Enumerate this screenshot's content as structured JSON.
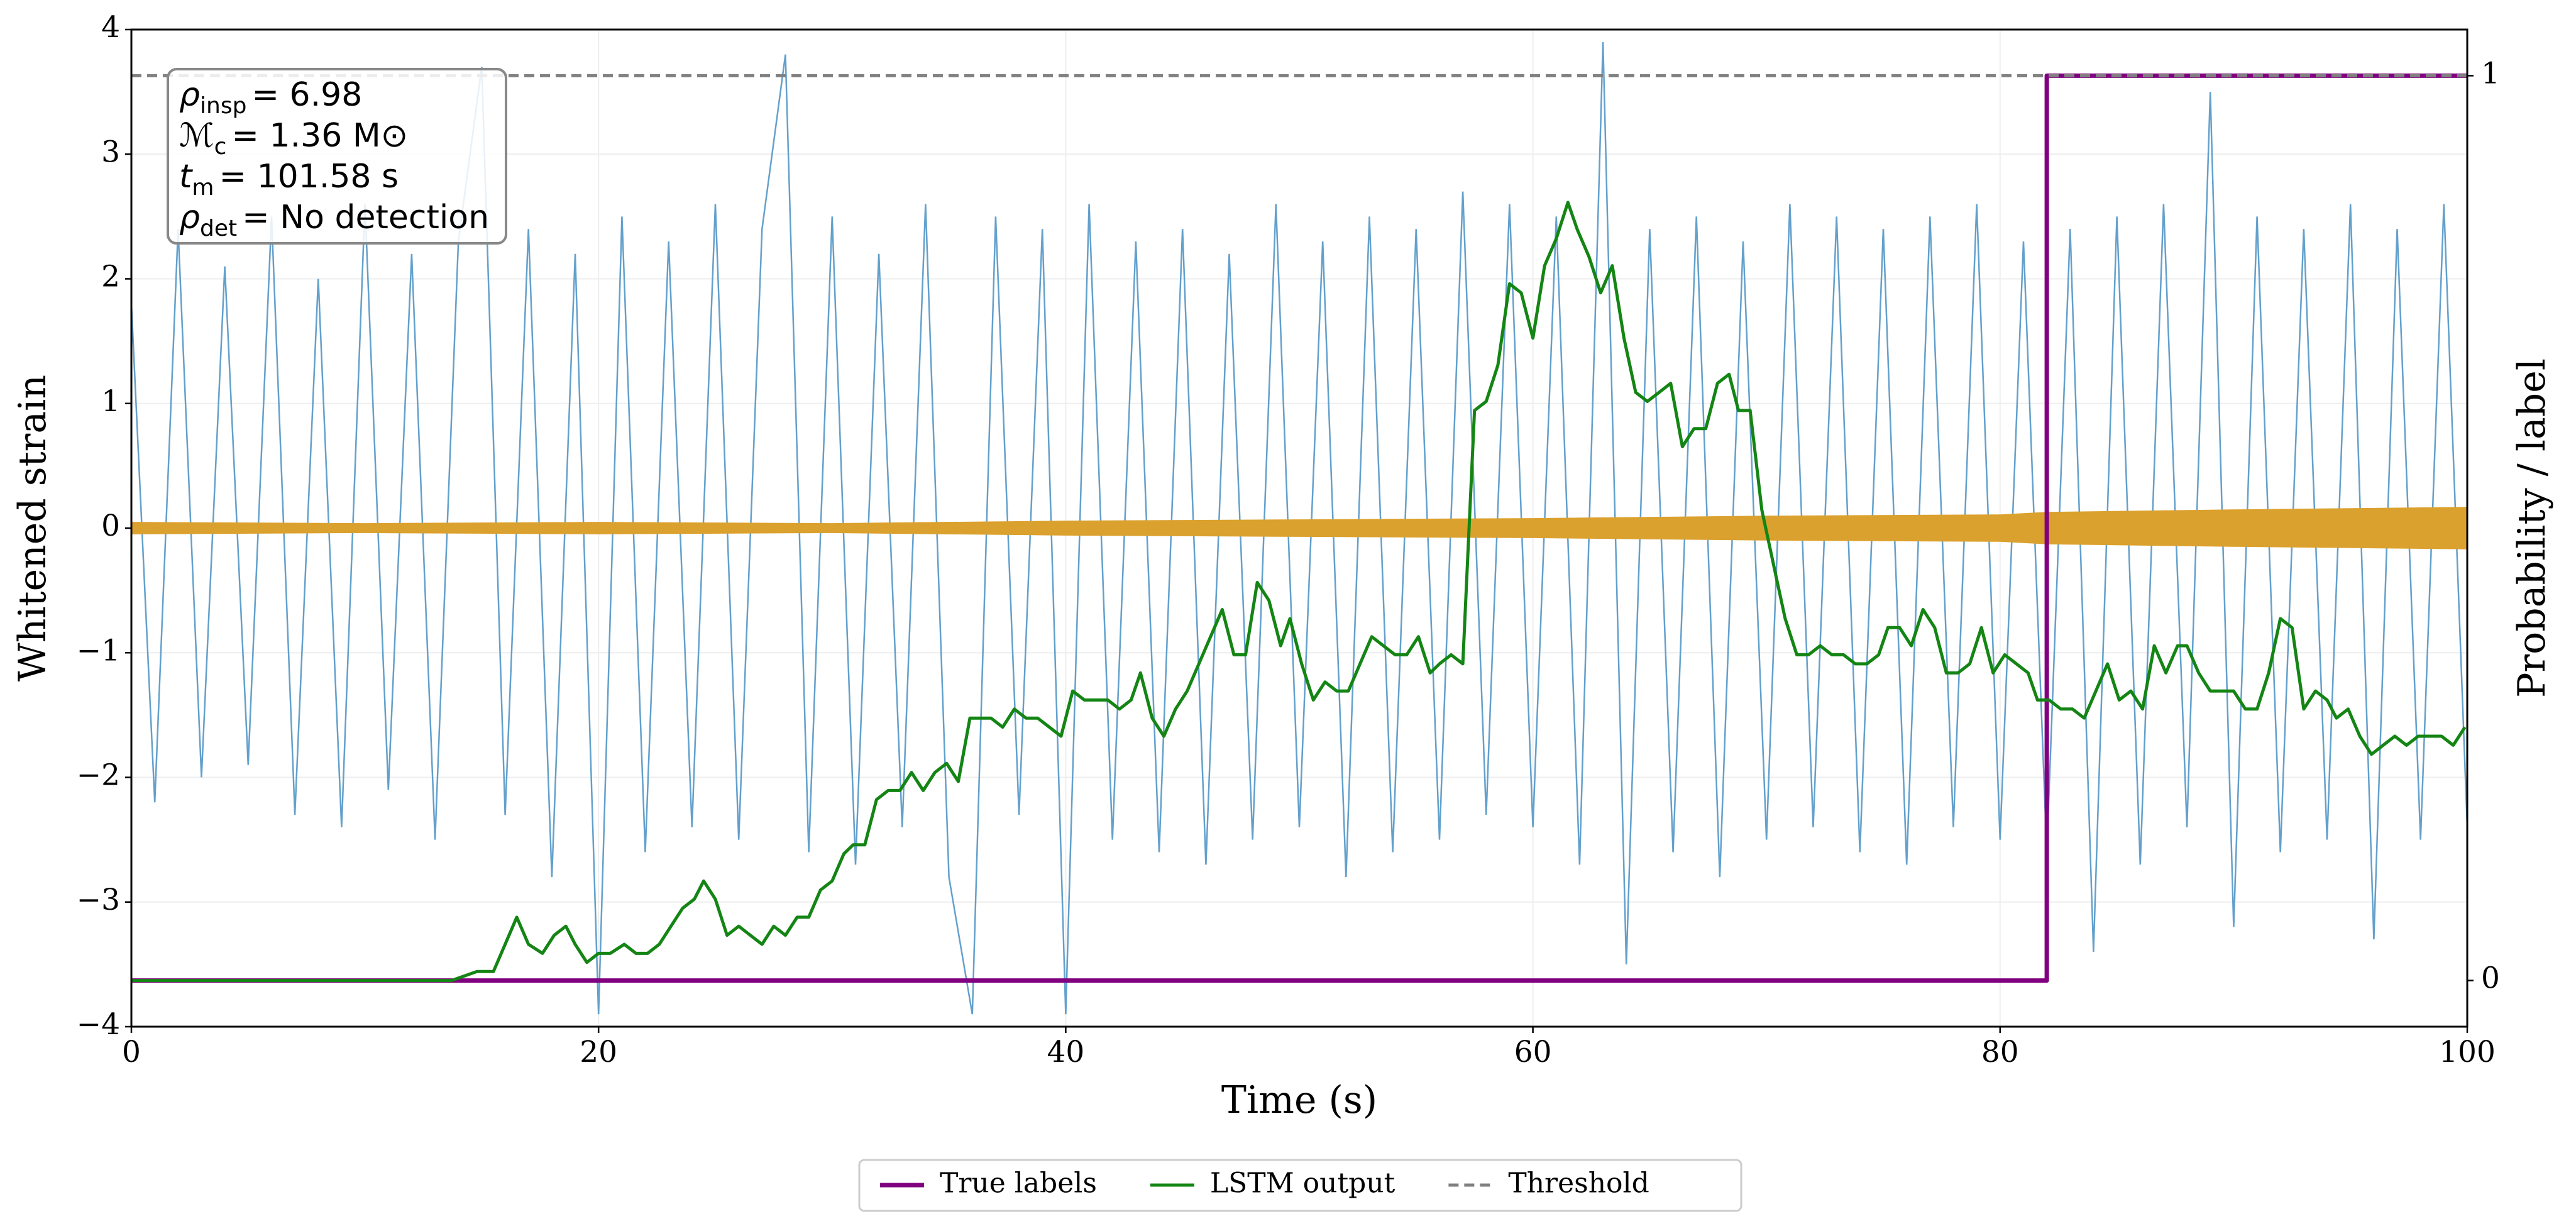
{
  "chart_data": {
    "type": "line",
    "xlabel": "Time (s)",
    "ylabel": "Whitened strain",
    "y2label": "Probability / label",
    "xlim": [
      0,
      100
    ],
    "xticks": [
      0,
      20,
      40,
      60,
      80,
      100
    ],
    "ylim": [
      -4,
      4
    ],
    "yticks": [
      {
        "value": -4,
        "label": "−4"
      },
      {
        "value": -3,
        "label": "−3"
      },
      {
        "value": -2,
        "label": "−2"
      },
      {
        "value": -1,
        "label": "−1"
      },
      0,
      1,
      2,
      3,
      4
    ],
    "y2lim": [
      -0.051,
      1.051
    ],
    "y2ticks": [
      0,
      1
    ],
    "grid": true,
    "legend": "bottom",
    "strain": {
      "color": "#5b9bc9",
      "x": [
        0,
        1,
        2,
        3,
        4,
        5,
        6,
        7,
        8,
        9,
        10,
        11,
        12,
        13,
        14,
        15,
        16,
        17,
        18,
        19,
        20,
        21,
        22,
        23,
        24,
        25,
        26,
        27,
        28,
        29,
        30,
        31,
        32,
        33,
        34,
        35,
        36,
        37,
        38,
        39,
        40,
        41,
        42,
        43,
        44,
        45,
        46,
        47,
        48,
        49,
        50,
        51,
        52,
        53,
        54,
        55,
        56,
        57,
        58,
        59,
        60,
        61,
        62,
        63,
        64,
        65,
        66,
        67,
        68,
        69,
        70,
        71,
        72,
        73,
        74,
        75,
        76,
        77,
        78,
        79,
        80,
        81,
        82,
        83,
        84,
        85,
        86,
        87,
        88,
        89,
        90,
        91,
        92,
        93,
        94,
        95,
        96,
        97,
        98,
        99,
        100
      ],
      "values": [
        1.8,
        -2.2,
        2.4,
        -2.0,
        2.1,
        -1.9,
        2.5,
        -2.3,
        2.0,
        -2.4,
        2.6,
        -2.1,
        2.2,
        -2.5,
        2.3,
        3.7,
        -2.3,
        2.4,
        -2.8,
        2.2,
        -3.9,
        2.5,
        -2.6,
        2.3,
        -2.4,
        2.6,
        -2.5,
        2.4,
        3.8,
        -2.6,
        2.5,
        -2.7,
        2.2,
        -2.4,
        2.6,
        -2.8,
        -3.9,
        2.5,
        -2.3,
        2.4,
        -3.9,
        2.6,
        -2.5,
        2.3,
        -2.6,
        2.4,
        -2.7,
        2.2,
        -2.5,
        2.6,
        -2.4,
        2.3,
        -2.8,
        2.5,
        -2.6,
        2.4,
        -2.5,
        2.7,
        -2.3,
        2.6,
        -2.4,
        2.5,
        -2.7,
        3.9,
        -3.5,
        2.4,
        -2.6,
        2.5,
        -2.8,
        2.3,
        -2.5,
        2.6,
        -2.4,
        2.5,
        -2.6,
        2.4,
        -2.7,
        2.5,
        -2.4,
        2.6,
        -2.5,
        2.3,
        -2.6,
        2.4,
        -3.4,
        2.5,
        -2.7,
        2.6,
        -2.4,
        3.5,
        -3.2,
        2.5,
        -2.6,
        2.4,
        -2.5,
        2.6,
        -3.3,
        2.4,
        -2.5,
        2.6,
        -2.4
      ]
    },
    "signal": {
      "color": "#dba12e",
      "x": [
        0,
        10,
        20,
        30,
        40,
        50,
        60,
        70,
        80,
        82,
        90,
        100
      ],
      "values": [
        0.05,
        0.04,
        0.05,
        0.04,
        0.06,
        0.07,
        0.08,
        0.1,
        0.11,
        0.13,
        0.15,
        0.17
      ]
    },
    "series": [
      {
        "name": "True labels",
        "color": "#800080",
        "axis": "y2",
        "x": [
          0,
          82,
          82,
          100
        ],
        "values": [
          0,
          0,
          1,
          1
        ]
      },
      {
        "name": "LSTM output",
        "color": "#148514",
        "axis": "y2",
        "x": [
          0,
          13.7,
          14.8,
          15.5,
          16.0,
          16.5,
          17.0,
          17.6,
          18.1,
          18.6,
          19.0,
          19.5,
          20.0,
          20.5,
          21.1,
          21.6,
          22.1,
          22.6,
          23.1,
          23.6,
          24.1,
          24.5,
          25.0,
          25.5,
          26.0,
          26.5,
          27.0,
          27.5,
          28.0,
          28.5,
          29.0,
          29.5,
          30.0,
          30.5,
          30.9,
          31.4,
          31.9,
          32.4,
          32.9,
          33.4,
          33.9,
          34.4,
          34.9,
          35.4,
          35.9,
          36.4,
          36.8,
          37.3,
          37.8,
          38.3,
          38.8,
          39.3,
          39.8,
          40.3,
          40.8,
          41.3,
          41.8,
          42.3,
          42.8,
          43.2,
          43.7,
          44.2,
          44.7,
          45.2,
          45.7,
          46.2,
          46.7,
          47.2,
          47.7,
          48.2,
          48.7,
          49.2,
          49.6,
          50.1,
          50.6,
          51.1,
          51.6,
          52.1,
          52.6,
          53.1,
          53.6,
          54.1,
          54.6,
          55.1,
          55.6,
          56.0,
          56.5,
          57.0,
          57.5,
          58.0,
          58.5,
          59.0,
          59.5,
          60.0,
          60.5,
          61.0,
          61.5,
          61.9,
          62.4,
          62.9,
          63.4,
          63.9,
          64.4,
          64.9,
          65.4,
          65.9,
          66.4,
          66.9,
          67.4,
          67.9,
          68.4,
          68.8,
          69.3,
          69.8,
          70.3,
          70.8,
          71.3,
          71.8,
          72.3,
          72.8,
          73.3,
          73.8,
          74.3,
          74.8,
          75.2,
          75.7,
          76.2,
          76.7,
          77.2,
          77.7,
          78.2,
          78.7,
          79.2,
          79.7,
          80.2,
          80.7,
          81.2,
          81.6,
          82.1,
          82.6,
          83.1,
          83.6,
          84.1,
          84.6,
          85.1,
          85.6,
          86.1,
          86.6,
          87.1,
          87.6,
          88.0,
          88.5,
          89.0,
          89.5,
          90.0,
          90.5,
          91.0,
          91.5,
          92.0,
          92.5,
          93.0,
          93.5,
          94.0,
          94.4,
          94.9,
          95.4,
          95.9,
          96.4,
          96.9,
          97.4,
          97.9,
          98.4,
          98.9,
          99.4,
          99.9
        ],
        "values": [
          0,
          0,
          0.01,
          0.01,
          0.04,
          0.07,
          0.04,
          0.03,
          0.05,
          0.06,
          0.04,
          0.02,
          0.03,
          0.03,
          0.04,
          0.03,
          0.03,
          0.04,
          0.06,
          0.08,
          0.09,
          0.11,
          0.09,
          0.05,
          0.06,
          0.05,
          0.04,
          0.06,
          0.05,
          0.07,
          0.07,
          0.1,
          0.11,
          0.14,
          0.15,
          0.15,
          0.2,
          0.21,
          0.21,
          0.23,
          0.21,
          0.23,
          0.24,
          0.22,
          0.29,
          0.29,
          0.29,
          0.28,
          0.3,
          0.29,
          0.29,
          0.28,
          0.27,
          0.32,
          0.31,
          0.31,
          0.31,
          0.3,
          0.31,
          0.34,
          0.29,
          0.27,
          0.3,
          0.32,
          0.35,
          0.38,
          0.41,
          0.36,
          0.36,
          0.44,
          0.42,
          0.37,
          0.4,
          0.35,
          0.31,
          0.33,
          0.32,
          0.32,
          0.35,
          0.38,
          0.37,
          0.36,
          0.36,
          0.38,
          0.34,
          0.35,
          0.36,
          0.35,
          0.63,
          0.64,
          0.68,
          0.77,
          0.76,
          0.71,
          0.79,
          0.82,
          0.86,
          0.83,
          0.8,
          0.76,
          0.79,
          0.71,
          0.65,
          0.64,
          0.65,
          0.66,
          0.59,
          0.61,
          0.61,
          0.66,
          0.67,
          0.63,
          0.63,
          0.52,
          0.46,
          0.4,
          0.36,
          0.36,
          0.37,
          0.36,
          0.36,
          0.35,
          0.35,
          0.36,
          0.39,
          0.39,
          0.37,
          0.41,
          0.39,
          0.34,
          0.34,
          0.35,
          0.39,
          0.34,
          0.36,
          0.35,
          0.34,
          0.31,
          0.31,
          0.3,
          0.3,
          0.29,
          0.32,
          0.35,
          0.31,
          0.32,
          0.3,
          0.37,
          0.34,
          0.37,
          0.37,
          0.34,
          0.32,
          0.32,
          0.32,
          0.3,
          0.3,
          0.34,
          0.4,
          0.39,
          0.3,
          0.32,
          0.31,
          0.29,
          0.3,
          0.27,
          0.25,
          0.26,
          0.27,
          0.26,
          0.27,
          0.27,
          0.27,
          0.26,
          0.28
        ]
      },
      {
        "name": "Threshold",
        "color": "#808080",
        "axis": "y2",
        "dashed": true,
        "x": [
          0,
          100
        ],
        "values": [
          1,
          1
        ]
      }
    ],
    "annotations": [
      {
        "symbol": "ρ",
        "sub": "insp",
        "text": "= 6.98"
      },
      {
        "symbol": "ℳ",
        "sub": "c",
        "text": "= 1.36 M⊙"
      },
      {
        "symbol": "t",
        "sub": "m",
        "text": "= 101.58 s"
      },
      {
        "symbol": "ρ",
        "sub": "det",
        "text": "= No detection"
      }
    ]
  }
}
